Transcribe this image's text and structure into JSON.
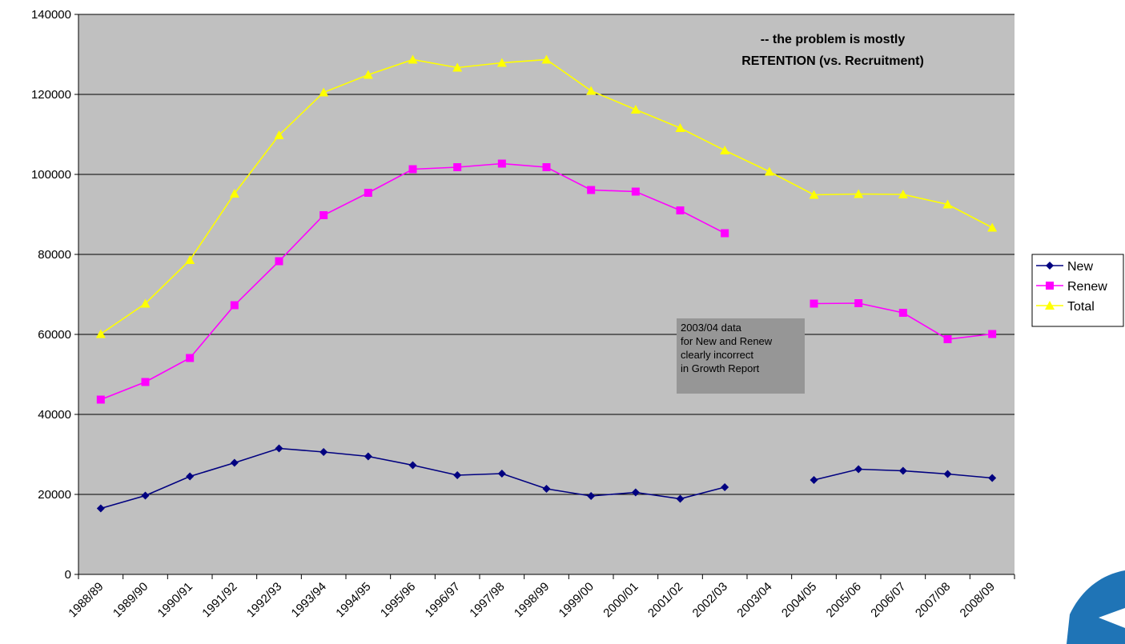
{
  "chart_data": {
    "type": "line",
    "title": "",
    "headline": [
      "--  the problem is mostly",
      "RETENTION (vs. Recruitment)"
    ],
    "annotation": [
      "2003/04 data",
      "for New and Renew",
      "clearly incorrect",
      "in Growth Report"
    ],
    "xlabel": "",
    "ylabel": "",
    "ylim": [
      0,
      140000
    ],
    "yticks": [
      "0",
      "20000",
      "40000",
      "60000",
      "80000",
      "100000",
      "120000",
      "140000"
    ],
    "grid": true,
    "legend_position": "right",
    "categories": [
      "1988/89",
      "1989/90",
      "1990/91",
      "1991/92",
      "1992/93",
      "1993/94",
      "1994/95",
      "1995/96",
      "1996/97",
      "1997/98",
      "1998/99",
      "1999/00",
      "2000/01",
      "2001/02",
      "2002/03",
      "2003/04",
      "2004/05",
      "2005/06",
      "2006/07",
      "2007/08",
      "2008/09"
    ],
    "series": [
      {
        "name": "New",
        "color": "#000080",
        "marker": "diamond",
        "values": [
          16500,
          19700,
          24500,
          27900,
          31500,
          30600,
          29500,
          27300,
          24800,
          25200,
          21400,
          19600,
          20500,
          18900,
          21800,
          null,
          23600,
          26300,
          25900,
          25100,
          24100
        ]
      },
      {
        "name": "Renew",
        "color": "#ff00ff",
        "marker": "square",
        "values": [
          43700,
          48100,
          54100,
          67300,
          78300,
          89800,
          95400,
          101300,
          101800,
          102700,
          101800,
          96100,
          95700,
          91000,
          85300,
          null,
          67700,
          67800,
          65400,
          58800,
          60100
        ]
      },
      {
        "name": "Total",
        "color": "#ffff00",
        "marker": "triangle",
        "values": [
          60100,
          67700,
          78600,
          95200,
          109800,
          120500,
          124900,
          128700,
          126700,
          127900,
          128700,
          120900,
          116200,
          111600,
          106000,
          100700,
          94900,
          95100,
          95000,
          92500,
          86700
        ]
      }
    ],
    "plot_background": "#c0c0c0",
    "note_background": "#969696",
    "logo_color": "#1f74b6"
  }
}
